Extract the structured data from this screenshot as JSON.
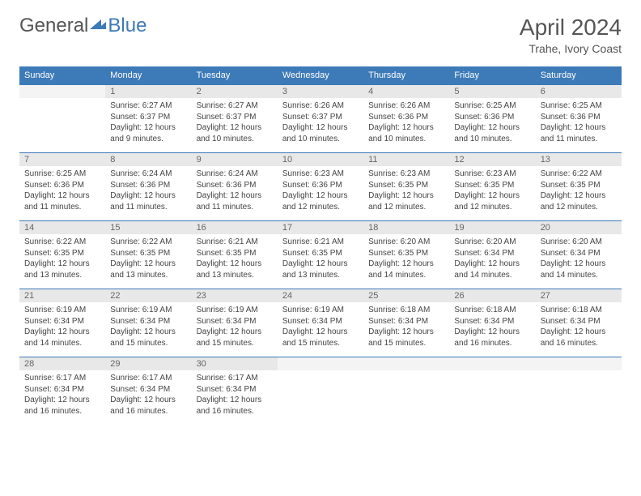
{
  "logo": {
    "general": "General",
    "blue": "Blue"
  },
  "title": "April 2024",
  "location": "Trahe, Ivory Coast",
  "dayHeaders": [
    "Sunday",
    "Monday",
    "Tuesday",
    "Wednesday",
    "Thursday",
    "Friday",
    "Saturday"
  ],
  "colors": {
    "headerBg": "#3d7ab8",
    "headerText": "#ffffff",
    "dayNumBg": "#e8e8e8",
    "blankBg": "#f4f4f4",
    "borderTop": "#3d7ab8"
  },
  "weeks": [
    {
      "nums": [
        "",
        "1",
        "2",
        "3",
        "4",
        "5",
        "6"
      ],
      "cells": [
        null,
        {
          "sunrise": "Sunrise: 6:27 AM",
          "sunset": "Sunset: 6:37 PM",
          "daylight": "Daylight: 12 hours and 9 minutes."
        },
        {
          "sunrise": "Sunrise: 6:27 AM",
          "sunset": "Sunset: 6:37 PM",
          "daylight": "Daylight: 12 hours and 10 minutes."
        },
        {
          "sunrise": "Sunrise: 6:26 AM",
          "sunset": "Sunset: 6:37 PM",
          "daylight": "Daylight: 12 hours and 10 minutes."
        },
        {
          "sunrise": "Sunrise: 6:26 AM",
          "sunset": "Sunset: 6:36 PM",
          "daylight": "Daylight: 12 hours and 10 minutes."
        },
        {
          "sunrise": "Sunrise: 6:25 AM",
          "sunset": "Sunset: 6:36 PM",
          "daylight": "Daylight: 12 hours and 10 minutes."
        },
        {
          "sunrise": "Sunrise: 6:25 AM",
          "sunset": "Sunset: 6:36 PM",
          "daylight": "Daylight: 12 hours and 11 minutes."
        }
      ]
    },
    {
      "nums": [
        "7",
        "8",
        "9",
        "10",
        "11",
        "12",
        "13"
      ],
      "cells": [
        {
          "sunrise": "Sunrise: 6:25 AM",
          "sunset": "Sunset: 6:36 PM",
          "daylight": "Daylight: 12 hours and 11 minutes."
        },
        {
          "sunrise": "Sunrise: 6:24 AM",
          "sunset": "Sunset: 6:36 PM",
          "daylight": "Daylight: 12 hours and 11 minutes."
        },
        {
          "sunrise": "Sunrise: 6:24 AM",
          "sunset": "Sunset: 6:36 PM",
          "daylight": "Daylight: 12 hours and 11 minutes."
        },
        {
          "sunrise": "Sunrise: 6:23 AM",
          "sunset": "Sunset: 6:36 PM",
          "daylight": "Daylight: 12 hours and 12 minutes."
        },
        {
          "sunrise": "Sunrise: 6:23 AM",
          "sunset": "Sunset: 6:35 PM",
          "daylight": "Daylight: 12 hours and 12 minutes."
        },
        {
          "sunrise": "Sunrise: 6:23 AM",
          "sunset": "Sunset: 6:35 PM",
          "daylight": "Daylight: 12 hours and 12 minutes."
        },
        {
          "sunrise": "Sunrise: 6:22 AM",
          "sunset": "Sunset: 6:35 PM",
          "daylight": "Daylight: 12 hours and 12 minutes."
        }
      ]
    },
    {
      "nums": [
        "14",
        "15",
        "16",
        "17",
        "18",
        "19",
        "20"
      ],
      "cells": [
        {
          "sunrise": "Sunrise: 6:22 AM",
          "sunset": "Sunset: 6:35 PM",
          "daylight": "Daylight: 12 hours and 13 minutes."
        },
        {
          "sunrise": "Sunrise: 6:22 AM",
          "sunset": "Sunset: 6:35 PM",
          "daylight": "Daylight: 12 hours and 13 minutes."
        },
        {
          "sunrise": "Sunrise: 6:21 AM",
          "sunset": "Sunset: 6:35 PM",
          "daylight": "Daylight: 12 hours and 13 minutes."
        },
        {
          "sunrise": "Sunrise: 6:21 AM",
          "sunset": "Sunset: 6:35 PM",
          "daylight": "Daylight: 12 hours and 13 minutes."
        },
        {
          "sunrise": "Sunrise: 6:20 AM",
          "sunset": "Sunset: 6:35 PM",
          "daylight": "Daylight: 12 hours and 14 minutes."
        },
        {
          "sunrise": "Sunrise: 6:20 AM",
          "sunset": "Sunset: 6:34 PM",
          "daylight": "Daylight: 12 hours and 14 minutes."
        },
        {
          "sunrise": "Sunrise: 6:20 AM",
          "sunset": "Sunset: 6:34 PM",
          "daylight": "Daylight: 12 hours and 14 minutes."
        }
      ]
    },
    {
      "nums": [
        "21",
        "22",
        "23",
        "24",
        "25",
        "26",
        "27"
      ],
      "cells": [
        {
          "sunrise": "Sunrise: 6:19 AM",
          "sunset": "Sunset: 6:34 PM",
          "daylight": "Daylight: 12 hours and 14 minutes."
        },
        {
          "sunrise": "Sunrise: 6:19 AM",
          "sunset": "Sunset: 6:34 PM",
          "daylight": "Daylight: 12 hours and 15 minutes."
        },
        {
          "sunrise": "Sunrise: 6:19 AM",
          "sunset": "Sunset: 6:34 PM",
          "daylight": "Daylight: 12 hours and 15 minutes."
        },
        {
          "sunrise": "Sunrise: 6:19 AM",
          "sunset": "Sunset: 6:34 PM",
          "daylight": "Daylight: 12 hours and 15 minutes."
        },
        {
          "sunrise": "Sunrise: 6:18 AM",
          "sunset": "Sunset: 6:34 PM",
          "daylight": "Daylight: 12 hours and 15 minutes."
        },
        {
          "sunrise": "Sunrise: 6:18 AM",
          "sunset": "Sunset: 6:34 PM",
          "daylight": "Daylight: 12 hours and 16 minutes."
        },
        {
          "sunrise": "Sunrise: 6:18 AM",
          "sunset": "Sunset: 6:34 PM",
          "daylight": "Daylight: 12 hours and 16 minutes."
        }
      ]
    },
    {
      "nums": [
        "28",
        "29",
        "30",
        "",
        "",
        "",
        ""
      ],
      "cells": [
        {
          "sunrise": "Sunrise: 6:17 AM",
          "sunset": "Sunset: 6:34 PM",
          "daylight": "Daylight: 12 hours and 16 minutes."
        },
        {
          "sunrise": "Sunrise: 6:17 AM",
          "sunset": "Sunset: 6:34 PM",
          "daylight": "Daylight: 12 hours and 16 minutes."
        },
        {
          "sunrise": "Sunrise: 6:17 AM",
          "sunset": "Sunset: 6:34 PM",
          "daylight": "Daylight: 12 hours and 16 minutes."
        },
        null,
        null,
        null,
        null
      ]
    }
  ]
}
